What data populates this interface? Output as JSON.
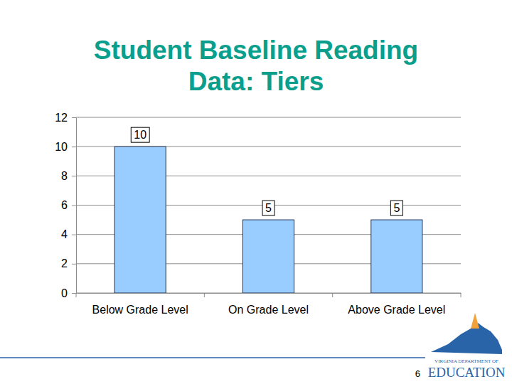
{
  "chart_data": {
    "type": "bar",
    "title": "Student Baseline Reading Data: Tiers",
    "categories": [
      "Below Grade Level",
      "On Grade Level",
      "Above Grade Level"
    ],
    "values": [
      10,
      5,
      5
    ],
    "color": "#99ccff",
    "ylim": [
      0,
      12
    ],
    "yticks": [
      0,
      2,
      4,
      6,
      8,
      10,
      12
    ],
    "grid": true,
    "data_labels": true
  },
  "footer": {
    "page_number": 6,
    "logo_lines": [
      "VIRGINIA DEPARTMENT OF",
      "EDUCATION"
    ]
  }
}
